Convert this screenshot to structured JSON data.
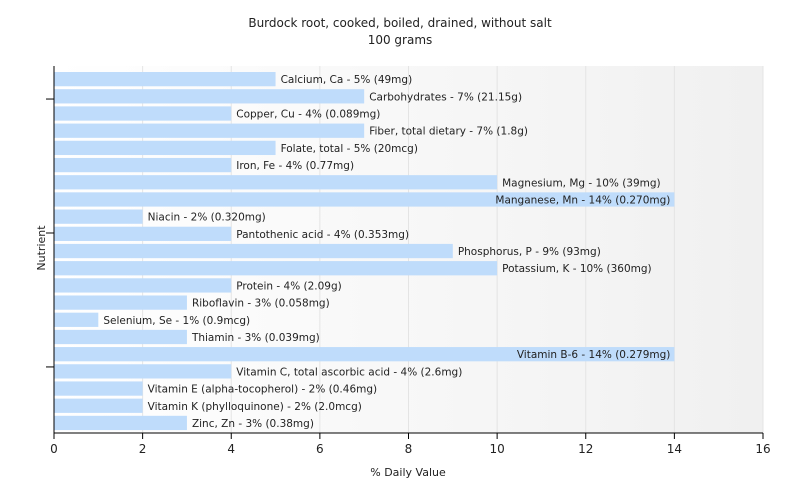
{
  "chart_data": {
    "type": "bar",
    "orientation": "horizontal",
    "title": "Burdock root, cooked, boiled, drained, without salt",
    "subtitle": "100 grams",
    "xlabel": "% Daily Value",
    "ylabel": "Nutrient",
    "xlim": [
      0,
      16
    ],
    "xticks": [
      0,
      2,
      4,
      6,
      8,
      10,
      12,
      14,
      16
    ],
    "grid": true,
    "legend": "none",
    "bar_color": "#bfdcfb",
    "categories": [
      "Calcium, Ca - 5% (49mg)",
      "Carbohydrates - 7% (21.15g)",
      "Copper, Cu - 4% (0.089mg)",
      "Fiber, total dietary - 7% (1.8g)",
      "Folate, total - 5% (20mcg)",
      "Iron, Fe - 4% (0.77mg)",
      "Magnesium, Mg - 10% (39mg)",
      "Manganese, Mn - 14% (0.270mg)",
      "Niacin - 2% (0.320mg)",
      "Pantothenic acid - 4% (0.353mg)",
      "Phosphorus, P - 9% (93mg)",
      "Potassium, K - 10% (360mg)",
      "Protein - 4% (2.09g)",
      "Riboflavin - 3% (0.058mg)",
      "Selenium, Se - 1% (0.9mcg)",
      "Thiamin - 3% (0.039mg)",
      "Vitamin B-6 - 14% (0.279mg)",
      "Vitamin C, total ascorbic acid - 4% (2.6mg)",
      "Vitamin E (alpha-tocopherol) - 2% (0.46mg)",
      "Vitamin K (phylloquinone) - 2% (2.0mcg)",
      "Zinc, Zn - 3% (0.38mg)"
    ],
    "values": [
      5,
      7,
      4,
      7,
      5,
      4,
      10,
      14,
      2,
      4,
      9,
      10,
      4,
      3,
      1,
      3,
      14,
      4,
      2,
      2,
      3
    ]
  }
}
